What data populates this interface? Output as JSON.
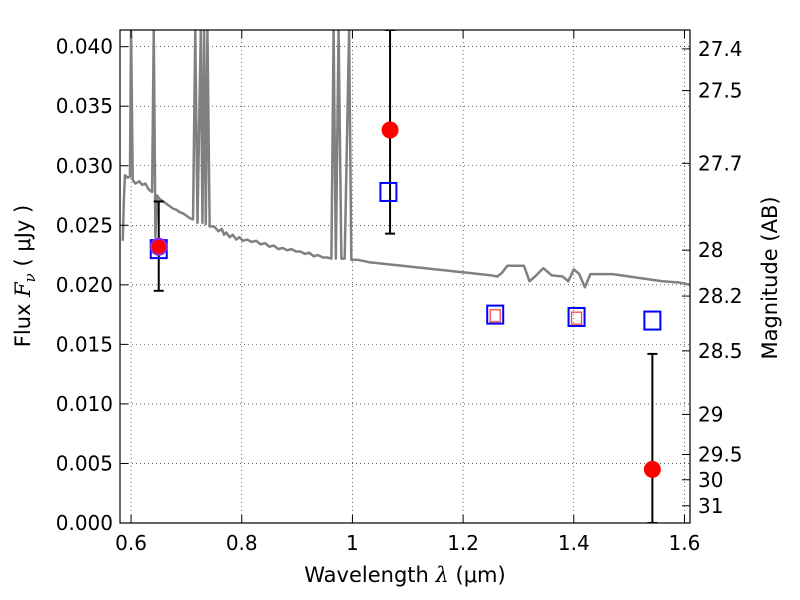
{
  "chart_data": {
    "type": "scatter",
    "xlabel": {
      "prefix": "Wavelength  ",
      "symbol": "λ",
      "unit": " (μm)"
    },
    "ylabel": {
      "prefix": "Flux  ",
      "symbol": "F",
      "subscript": "ν",
      "unit": "  ( μJy )"
    },
    "ylabel_right": "Magnitude (AB)",
    "xlim": [
      0.58,
      1.61
    ],
    "ylim": [
      0.0,
      0.0414
    ],
    "grid": true,
    "x_ticks": [
      {
        "value": 0.6,
        "label": "0.6"
      },
      {
        "value": 0.8,
        "label": "0.8"
      },
      {
        "value": 1.0,
        "label": "1"
      },
      {
        "value": 1.2,
        "label": "1.2"
      },
      {
        "value": 1.4,
        "label": "1.4"
      },
      {
        "value": 1.6,
        "label": "1.6"
      }
    ],
    "y_ticks": [
      {
        "value": 0.0,
        "label": "0.000"
      },
      {
        "value": 0.005,
        "label": "0.005"
      },
      {
        "value": 0.01,
        "label": "0.010"
      },
      {
        "value": 0.015,
        "label": "0.015"
      },
      {
        "value": 0.02,
        "label": "0.020"
      },
      {
        "value": 0.025,
        "label": "0.025"
      },
      {
        "value": 0.03,
        "label": "0.030"
      },
      {
        "value": 0.035,
        "label": "0.035"
      },
      {
        "value": 0.04,
        "label": "0.040"
      }
    ],
    "mag_ticks": [
      {
        "value": 27.4,
        "label": "27.4"
      },
      {
        "value": 27.5,
        "label": "27.5"
      },
      {
        "value": 27.7,
        "label": "27.7"
      },
      {
        "value": 28.0,
        "label": "28"
      },
      {
        "value": 28.2,
        "label": "28.2"
      },
      {
        "value": 28.5,
        "label": "28.5"
      },
      {
        "value": 29.0,
        "label": "29"
      },
      {
        "value": 29.5,
        "label": "29.5"
      },
      {
        "value": 30.0,
        "label": "30"
      },
      {
        "value": 31.0,
        "label": "31"
      }
    ],
    "model_spectrum": {
      "color": "#808080",
      "points": [
        [
          0.585,
          0.0237
        ],
        [
          0.587,
          0.0272
        ],
        [
          0.589,
          0.0292
        ],
        [
          0.594,
          0.029
        ],
        [
          0.598,
          0.0291
        ],
        [
          0.6,
          0.0414
        ],
        [
          0.603,
          0.0288
        ],
        [
          0.608,
          0.0285
        ],
        [
          0.615,
          0.0287
        ],
        [
          0.62,
          0.0284
        ],
        [
          0.626,
          0.0285
        ],
        [
          0.632,
          0.028
        ],
        [
          0.638,
          0.0278
        ],
        [
          0.641,
          0.0414
        ],
        [
          0.644,
          0.024
        ],
        [
          0.647,
          0.0275
        ],
        [
          0.652,
          0.0272
        ],
        [
          0.658,
          0.027
        ],
        [
          0.664,
          0.0268
        ],
        [
          0.67,
          0.0266
        ],
        [
          0.676,
          0.0264
        ],
        [
          0.682,
          0.0263
        ],
        [
          0.688,
          0.0261
        ],
        [
          0.694,
          0.026
        ],
        [
          0.7,
          0.0258
        ],
        [
          0.706,
          0.0256
        ],
        [
          0.712,
          0.0255
        ],
        [
          0.716,
          0.0414
        ],
        [
          0.72,
          0.0252
        ],
        [
          0.726,
          0.0414
        ],
        [
          0.729,
          0.0252
        ],
        [
          0.732,
          0.0414
        ],
        [
          0.735,
          0.0251
        ],
        [
          0.738,
          0.0414
        ],
        [
          0.742,
          0.0249
        ],
        [
          0.75,
          0.0249
        ],
        [
          0.758,
          0.0245
        ],
        [
          0.764,
          0.0247
        ],
        [
          0.768,
          0.0242
        ],
        [
          0.772,
          0.0244
        ],
        [
          0.778,
          0.024
        ],
        [
          0.784,
          0.0242
        ],
        [
          0.79,
          0.0238
        ],
        [
          0.796,
          0.024
        ],
        [
          0.802,
          0.0237
        ],
        [
          0.81,
          0.0238
        ],
        [
          0.818,
          0.0236
        ],
        [
          0.826,
          0.0237
        ],
        [
          0.834,
          0.0234
        ],
        [
          0.842,
          0.0235
        ],
        [
          0.85,
          0.0232
        ],
        [
          0.858,
          0.0233
        ],
        [
          0.866,
          0.023
        ],
        [
          0.874,
          0.0231
        ],
        [
          0.882,
          0.0229
        ],
        [
          0.89,
          0.023
        ],
        [
          0.898,
          0.0228
        ],
        [
          0.906,
          0.0228
        ],
        [
          0.914,
          0.0226
        ],
        [
          0.922,
          0.0227
        ],
        [
          0.93,
          0.0224
        ],
        [
          0.938,
          0.0225
        ],
        [
          0.946,
          0.0223
        ],
        [
          0.954,
          0.0223
        ],
        [
          0.962,
          0.0222
        ],
        [
          0.966,
          0.0414
        ],
        [
          0.97,
          0.0222
        ],
        [
          0.975,
          0.0414
        ],
        [
          0.98,
          0.0222
        ],
        [
          0.986,
          0.0222
        ],
        [
          0.994,
          0.0414
        ],
        [
          0.998,
          0.0221
        ],
        [
          1.01,
          0.0221
        ],
        [
          1.03,
          0.0219
        ],
        [
          1.05,
          0.0218
        ],
        [
          1.07,
          0.0217
        ],
        [
          1.09,
          0.0216
        ],
        [
          1.11,
          0.0215
        ],
        [
          1.13,
          0.0214
        ],
        [
          1.15,
          0.0213
        ],
        [
          1.17,
          0.0212
        ],
        [
          1.19,
          0.0211
        ],
        [
          1.21,
          0.021
        ],
        [
          1.23,
          0.0209
        ],
        [
          1.25,
          0.0208
        ],
        [
          1.262,
          0.0207
        ],
        [
          1.27,
          0.021
        ],
        [
          1.28,
          0.0216
        ],
        [
          1.3,
          0.0216
        ],
        [
          1.31,
          0.0216
        ],
        [
          1.32,
          0.0203
        ],
        [
          1.33,
          0.0207
        ],
        [
          1.345,
          0.0214
        ],
        [
          1.36,
          0.0208
        ],
        [
          1.38,
          0.0207
        ],
        [
          1.39,
          0.0203
        ],
        [
          1.4,
          0.0213
        ],
        [
          1.41,
          0.0209
        ],
        [
          1.42,
          0.0198
        ],
        [
          1.43,
          0.0209
        ],
        [
          1.45,
          0.0209
        ],
        [
          1.47,
          0.0209
        ],
        [
          1.5,
          0.0207
        ],
        [
          1.53,
          0.0205
        ],
        [
          1.56,
          0.0203
        ],
        [
          1.59,
          0.0202
        ],
        [
          1.61,
          0.02
        ]
      ]
    },
    "observed_points": {
      "color": "#ff0000",
      "points": [
        {
          "x": 0.65,
          "y": 0.0232,
          "err_low": 0.0195,
          "err_high": 0.027
        },
        {
          "x": 1.068,
          "y": 0.033,
          "err_low": 0.0243,
          "err_high": 0.0414
        },
        {
          "x": 1.542,
          "y": 0.0045,
          "err_low": 0.0,
          "err_high": 0.0142
        }
      ]
    },
    "model_photometry": {
      "color": "#0000ff",
      "points": [
        {
          "x": 0.65,
          "y": 0.023
        },
        {
          "x": 1.065,
          "y": 0.0278
        },
        {
          "x": 1.258,
          "y": 0.0175
        },
        {
          "x": 1.405,
          "y": 0.0173
        },
        {
          "x": 1.542,
          "y": 0.017
        }
      ]
    },
    "inner_squares": {
      "color": "#ff4444",
      "points": [
        {
          "x": 1.258,
          "y": 0.0174
        },
        {
          "x": 1.405,
          "y": 0.0172
        }
      ]
    }
  }
}
